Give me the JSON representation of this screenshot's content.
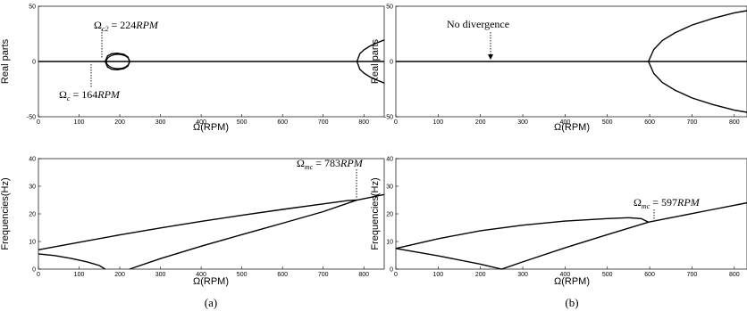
{
  "figure": {
    "caption_a": "(a)",
    "caption_b": "(b)"
  },
  "chart_data": [
    {
      "id": "a-top",
      "type": "line",
      "xlabel": "Ω(RPM)",
      "ylabel": "Real parts",
      "xlim": [
        0,
        850
      ],
      "ylim": [
        -50,
        50
      ],
      "xticks": [
        0,
        100,
        200,
        300,
        400,
        500,
        600,
        700,
        800
      ],
      "yticks": [
        -50,
        0,
        50
      ],
      "series": [
        {
          "x": [
            0,
            160,
            770,
            780,
            850
          ],
          "y": [
            0,
            0,
            0,
            0,
            0
          ]
        },
        {
          "x": [
            164,
            170,
            180,
            194,
            210,
            220,
            224
          ],
          "y": [
            0,
            5,
            7,
            7.5,
            6.5,
            4,
            0
          ]
        },
        {
          "x": [
            164,
            170,
            180,
            194,
            210,
            220,
            224
          ],
          "y": [
            0,
            -5,
            -7,
            -7.5,
            -6.5,
            -4,
            0
          ]
        },
        {
          "x": [
            783,
            790,
            800,
            815,
            830,
            850
          ],
          "y": [
            0,
            7,
            10.5,
            14,
            16.5,
            19.5
          ]
        },
        {
          "x": [
            783,
            790,
            800,
            815,
            830,
            850
          ],
          "y": [
            0,
            -7,
            -10.5,
            -14,
            -16.5,
            -19.5
          ]
        }
      ],
      "annotations": [
        {
          "base": "Ω",
          "sub": "c2",
          "value": " = 224",
          "unit": "RPM"
        },
        {
          "base": "Ω",
          "sub": "c",
          "value": " = 164",
          "unit": "RPM"
        }
      ]
    },
    {
      "id": "b-top",
      "type": "line",
      "xlabel": "Ω(RPM)",
      "ylabel": "Real parts",
      "xlim": [
        0,
        830
      ],
      "ylim": [
        -50,
        50
      ],
      "xticks": [
        0,
        100,
        200,
        300,
        400,
        500,
        600,
        700,
        800
      ],
      "yticks": [
        -50,
        0,
        50
      ],
      "series": [
        {
          "x": [
            0,
            597,
            830
          ],
          "y": [
            0,
            0,
            0
          ]
        },
        {
          "x": [
            597,
            610,
            630,
            660,
            700,
            750,
            800,
            830
          ],
          "y": [
            0,
            11,
            19,
            26,
            33,
            39,
            44,
            46
          ]
        },
        {
          "x": [
            597,
            610,
            630,
            660,
            700,
            750,
            800,
            830
          ],
          "y": [
            0,
            -11,
            -19,
            -26,
            -33,
            -39,
            -44,
            -46
          ]
        }
      ],
      "annotations": [
        {
          "text": "No divergence"
        }
      ]
    },
    {
      "id": "a-bottom",
      "type": "line",
      "xlabel": "Ω(RPM)",
      "ylabel": "Frequencies(Hz)",
      "xlim": [
        0,
        850
      ],
      "ylim": [
        0,
        40
      ],
      "xticks": [
        0,
        100,
        200,
        300,
        400,
        500,
        600,
        700,
        800
      ],
      "yticks": [
        0,
        10,
        20,
        30,
        40
      ],
      "series": [
        {
          "x": [
            0,
            100,
            200,
            300,
            400,
            500,
            600,
            700,
            760,
            783,
            850
          ],
          "y": [
            7,
            9.7,
            12.4,
            14.9,
            17.3,
            19.5,
            21.6,
            23.6,
            24.8,
            25,
            27
          ]
        },
        {
          "x": [
            224,
            300,
            400,
            500,
            600,
            700,
            783
          ],
          "y": [
            0,
            3.8,
            8.3,
            12.5,
            16.6,
            20.8,
            25
          ]
        },
        {
          "x": [
            0,
            40,
            80,
            120,
            150,
            164
          ],
          "y": [
            5.5,
            4.9,
            3.9,
            2.6,
            1.3,
            0
          ]
        }
      ],
      "annotations": [
        {
          "base": "Ω",
          "sub": "mc",
          "value": " = 783",
          "unit": "RPM"
        }
      ]
    },
    {
      "id": "b-bottom",
      "type": "line",
      "xlabel": "Ω(RPM)",
      "ylabel": "Frequencies(Hz)",
      "xlim": [
        0,
        830
      ],
      "ylim": [
        0,
        40
      ],
      "xticks": [
        0,
        100,
        200,
        300,
        400,
        500,
        600,
        700,
        800
      ],
      "yticks": [
        0,
        10,
        20,
        30,
        40
      ],
      "series": [
        {
          "x": [
            0,
            100,
            200,
            300,
            400,
            500,
            550,
            580,
            597,
            650,
            700,
            750,
            830
          ],
          "y": [
            7.5,
            11,
            13.9,
            15.9,
            17.4,
            18.3,
            18.6,
            18.3,
            17,
            18.6,
            20.1,
            21.6,
            24
          ]
        },
        {
          "x": [
            0,
            100,
            200,
            250,
            300,
            400,
            500,
            597
          ],
          "y": [
            7.5,
            4.8,
            1.8,
            0,
            2.6,
            7.7,
            12.5,
            17
          ]
        }
      ],
      "annotations": [
        {
          "base": "Ω",
          "sub": "mc",
          "value": " = 597",
          "unit": "RPM"
        }
      ]
    }
  ]
}
